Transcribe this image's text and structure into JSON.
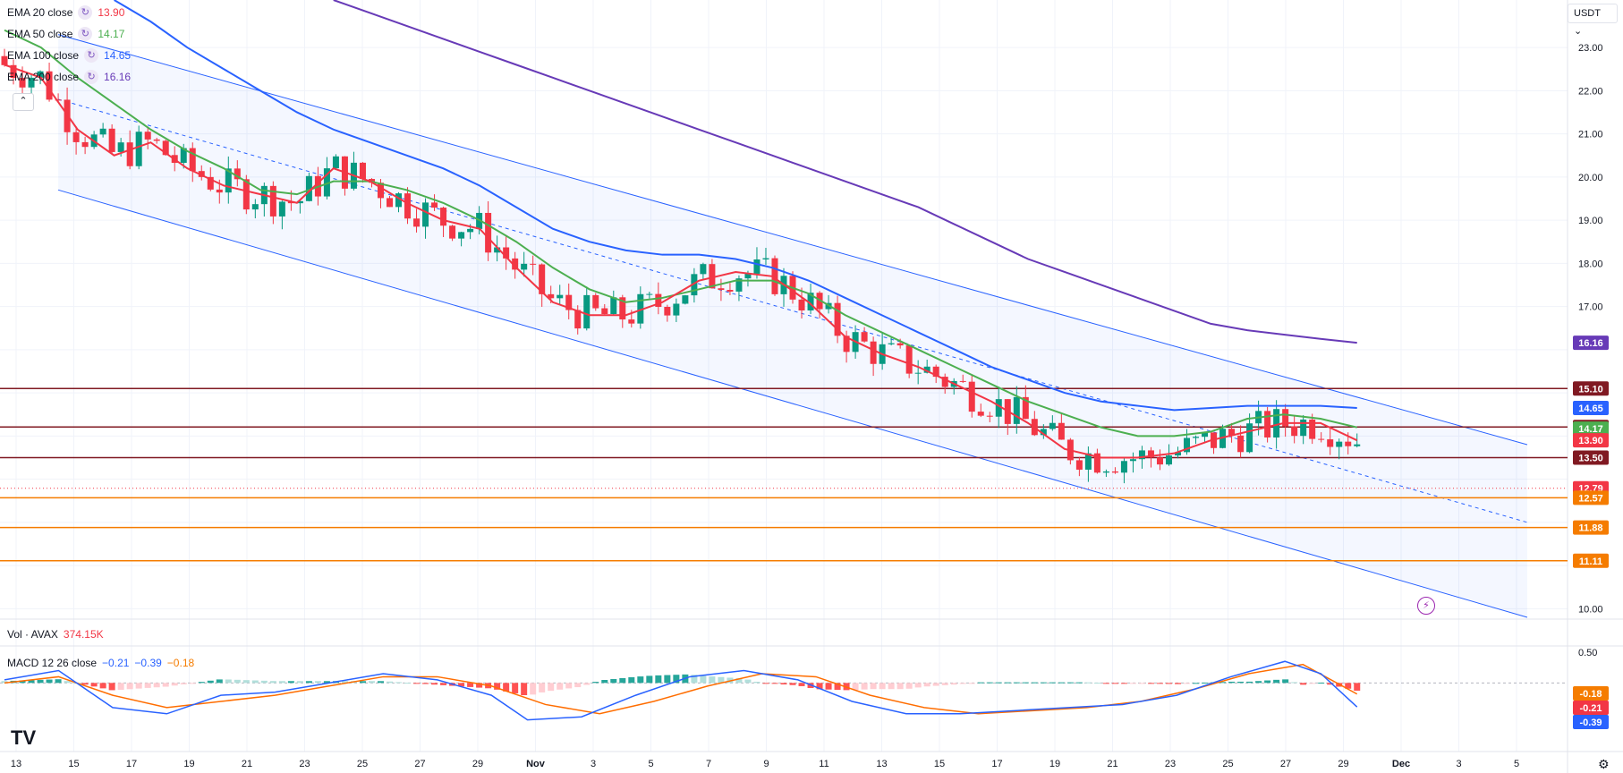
{
  "chart_data": {
    "type": "candlestick",
    "symbol": "AVAX",
    "quote_currency": "USDT",
    "y_range": [
      9.8,
      24.1
    ],
    "y_ticks": [
      "23.00",
      "22.00",
      "21.00",
      "20.00",
      "19.00",
      "18.00",
      "17.00",
      "10.00"
    ],
    "x_ticks": [
      "13",
      "15",
      "17",
      "19",
      "21",
      "23",
      "25",
      "27",
      "29",
      "Nov",
      "3",
      "5",
      "7",
      "9",
      "11",
      "13",
      "15",
      "17",
      "19",
      "21",
      "23",
      "25",
      "27",
      "29",
      "Dec",
      "3",
      "5"
    ],
    "indicators": [
      {
        "name": "EMA 20 close",
        "value": "13.90",
        "color": "#f23645"
      },
      {
        "name": "EMA 50 close",
        "value": "14.17",
        "color": "#4caf50"
      },
      {
        "name": "EMA 100 close",
        "value": "14.65",
        "color": "#2962ff"
      },
      {
        "name": "EMA 200 close",
        "value": "16.16",
        "color": "#673ab7"
      }
    ],
    "ema_series": {
      "ema20": [
        [
          0,
          22.6
        ],
        [
          4,
          22.3
        ],
        [
          8,
          21.1
        ],
        [
          12,
          20.5
        ],
        [
          16,
          20.8
        ],
        [
          20,
          20.2
        ],
        [
          24,
          19.8
        ],
        [
          28,
          19.6
        ],
        [
          32,
          19.4
        ],
        [
          36,
          20.2
        ],
        [
          40,
          19.9
        ],
        [
          44,
          19.4
        ],
        [
          48,
          19.0
        ],
        [
          52,
          18.8
        ],
        [
          56,
          17.9
        ],
        [
          60,
          17.1
        ],
        [
          64,
          16.8
        ],
        [
          68,
          16.8
        ],
        [
          72,
          17.1
        ],
        [
          76,
          17.6
        ],
        [
          80,
          17.8
        ],
        [
          84,
          17.7
        ],
        [
          88,
          17.1
        ],
        [
          92,
          16.3
        ],
        [
          96,
          15.9
        ],
        [
          100,
          15.6
        ],
        [
          104,
          15.2
        ],
        [
          108,
          14.8
        ],
        [
          112,
          14.3
        ],
        [
          116,
          13.7
        ],
        [
          120,
          13.5
        ],
        [
          124,
          13.5
        ],
        [
          128,
          13.6
        ],
        [
          132,
          13.9
        ],
        [
          136,
          14.1
        ],
        [
          140,
          14.3
        ],
        [
          144,
          14.3
        ],
        [
          148,
          13.9
        ]
      ],
      "ema50": [
        [
          0,
          23.4
        ],
        [
          4,
          23.0
        ],
        [
          8,
          22.3
        ],
        [
          12,
          21.7
        ],
        [
          16,
          21.1
        ],
        [
          20,
          20.6
        ],
        [
          24,
          20.2
        ],
        [
          28,
          19.7
        ],
        [
          32,
          19.6
        ],
        [
          36,
          19.9
        ],
        [
          40,
          19.9
        ],
        [
          44,
          19.7
        ],
        [
          48,
          19.4
        ],
        [
          52,
          19.0
        ],
        [
          56,
          18.5
        ],
        [
          60,
          17.9
        ],
        [
          64,
          17.4
        ],
        [
          68,
          17.1
        ],
        [
          72,
          17.2
        ],
        [
          76,
          17.4
        ],
        [
          80,
          17.6
        ],
        [
          84,
          17.6
        ],
        [
          88,
          17.3
        ],
        [
          92,
          16.8
        ],
        [
          96,
          16.4
        ],
        [
          100,
          16.0
        ],
        [
          104,
          15.6
        ],
        [
          108,
          15.2
        ],
        [
          112,
          14.8
        ],
        [
          116,
          14.5
        ],
        [
          120,
          14.2
        ],
        [
          124,
          14.0
        ],
        [
          128,
          14.0
        ],
        [
          132,
          14.1
        ],
        [
          136,
          14.4
        ],
        [
          140,
          14.5
        ],
        [
          144,
          14.4
        ],
        [
          148,
          14.2
        ]
      ],
      "ema100": [
        [
          12,
          24.1
        ],
        [
          16,
          23.6
        ],
        [
          20,
          23.0
        ],
        [
          24,
          22.5
        ],
        [
          28,
          22.0
        ],
        [
          32,
          21.5
        ],
        [
          36,
          21.1
        ],
        [
          40,
          20.8
        ],
        [
          44,
          20.5
        ],
        [
          48,
          20.2
        ],
        [
          52,
          19.8
        ],
        [
          56,
          19.3
        ],
        [
          60,
          18.8
        ],
        [
          64,
          18.5
        ],
        [
          68,
          18.3
        ],
        [
          72,
          18.2
        ],
        [
          76,
          18.2
        ],
        [
          80,
          18.1
        ],
        [
          84,
          17.9
        ],
        [
          88,
          17.6
        ],
        [
          92,
          17.2
        ],
        [
          96,
          16.8
        ],
        [
          100,
          16.4
        ],
        [
          104,
          16.0
        ],
        [
          108,
          15.6
        ],
        [
          112,
          15.3
        ],
        [
          116,
          15.0
        ],
        [
          120,
          14.8
        ],
        [
          124,
          14.7
        ],
        [
          128,
          14.6
        ],
        [
          132,
          14.65
        ],
        [
          136,
          14.7
        ],
        [
          140,
          14.7
        ],
        [
          144,
          14.7
        ],
        [
          148,
          14.65
        ]
      ],
      "ema200": [
        [
          36,
          24.1
        ],
        [
          40,
          23.8
        ],
        [
          44,
          23.5
        ],
        [
          48,
          23.2
        ],
        [
          52,
          22.9
        ],
        [
          56,
          22.6
        ],
        [
          60,
          22.3
        ],
        [
          64,
          22.0
        ],
        [
          68,
          21.7
        ],
        [
          72,
          21.4
        ],
        [
          76,
          21.1
        ],
        [
          80,
          20.8
        ],
        [
          84,
          20.5
        ],
        [
          88,
          20.2
        ],
        [
          92,
          19.9
        ],
        [
          96,
          19.6
        ],
        [
          100,
          19.3
        ],
        [
          104,
          18.9
        ],
        [
          108,
          18.5
        ],
        [
          112,
          18.1
        ],
        [
          116,
          17.8
        ],
        [
          120,
          17.5
        ],
        [
          124,
          17.2
        ],
        [
          128,
          16.9
        ],
        [
          132,
          16.6
        ],
        [
          136,
          16.45
        ],
        [
          140,
          16.35
        ],
        [
          144,
          16.25
        ],
        [
          148,
          16.16
        ]
      ]
    },
    "price_labels": [
      {
        "value": "16.16",
        "price": 16.16,
        "color": "#673ab7"
      },
      {
        "value": "15.10",
        "price": 15.1,
        "color": "#801922"
      },
      {
        "value": "14.65",
        "price": 14.65,
        "color": "#2962ff"
      },
      {
        "value": "14.21",
        "price": 14.21,
        "color": "#801922"
      },
      {
        "value": "14.17",
        "price": 14.17,
        "color": "#4caf50"
      },
      {
        "value": "13.90",
        "price": 13.9,
        "color": "#f23645"
      },
      {
        "value": "13.50",
        "price": 13.5,
        "color": "#801922"
      },
      {
        "value": "12.79",
        "price": 12.79,
        "color": "#f23645"
      },
      {
        "value": "12.57",
        "price": 12.57,
        "color": "#f57c00"
      },
      {
        "value": "11.88",
        "price": 11.88,
        "color": "#f57c00"
      },
      {
        "value": "11.11",
        "price": 11.11,
        "color": "#f57c00"
      }
    ],
    "horizontal_levels": [
      {
        "price": 15.1,
        "color": "#801922"
      },
      {
        "price": 14.21,
        "color": "#801922"
      },
      {
        "price": 13.5,
        "color": "#801922"
      },
      {
        "price": 12.57,
        "color": "#f57c00"
      },
      {
        "price": 11.88,
        "color": "#f57c00"
      },
      {
        "price": 11.11,
        "color": "#f57c00"
      }
    ],
    "channel": {
      "upper": [
        [
          6,
          23.3
        ],
        [
          170,
          13.8
        ]
      ],
      "middle": [
        [
          6,
          21.8
        ],
        [
          170,
          12.0
        ]
      ],
      "lower": [
        [
          6,
          19.7
        ],
        [
          170,
          9.8
        ]
      ]
    },
    "volume": {
      "label": "Vol · AVAX",
      "value": "374.15K"
    },
    "macd": {
      "label": "MACD 12 26 close",
      "values": [
        "−0.21",
        "−0.39",
        "−0.18"
      ],
      "value_colors": [
        "#2962ff",
        "#2962ff",
        "#f57c00"
      ],
      "y_range": [
        -0.75,
        0.6
      ],
      "y_ticks": [
        "0.50"
      ],
      "axis_labels": [
        {
          "value": "-0.18",
          "num": -0.18,
          "color": "#f57c00"
        },
        {
          "value": "-0.21",
          "num": -0.21,
          "color": "#f23645"
        },
        {
          "value": "-0.39",
          "num": -0.39,
          "color": "#2962ff"
        }
      ],
      "macd_line": [
        [
          0,
          0.05
        ],
        [
          6,
          0.2
        ],
        [
          12,
          -0.4
        ],
        [
          18,
          -0.5
        ],
        [
          24,
          -0.2
        ],
        [
          30,
          -0.15
        ],
        [
          36,
          0.0
        ],
        [
          42,
          0.15
        ],
        [
          48,
          0.05
        ],
        [
          54,
          -0.2
        ],
        [
          58,
          -0.6
        ],
        [
          64,
          -0.55
        ],
        [
          70,
          -0.2
        ],
        [
          76,
          0.1
        ],
        [
          82,
          0.2
        ],
        [
          88,
          0.05
        ],
        [
          94,
          -0.3
        ],
        [
          100,
          -0.5
        ],
        [
          106,
          -0.5
        ],
        [
          112,
          -0.45
        ],
        [
          118,
          -0.4
        ],
        [
          124,
          -0.35
        ],
        [
          130,
          -0.2
        ],
        [
          136,
          0.1
        ],
        [
          142,
          0.35
        ],
        [
          146,
          0.15
        ],
        [
          150,
          -0.39
        ]
      ],
      "signal_line": [
        [
          0,
          0.0
        ],
        [
          6,
          0.1
        ],
        [
          12,
          -0.2
        ],
        [
          18,
          -0.4
        ],
        [
          24,
          -0.3
        ],
        [
          30,
          -0.2
        ],
        [
          36,
          -0.05
        ],
        [
          42,
          0.1
        ],
        [
          48,
          0.1
        ],
        [
          54,
          -0.05
        ],
        [
          60,
          -0.35
        ],
        [
          66,
          -0.5
        ],
        [
          72,
          -0.3
        ],
        [
          78,
          -0.05
        ],
        [
          84,
          0.15
        ],
        [
          90,
          0.1
        ],
        [
          96,
          -0.2
        ],
        [
          102,
          -0.4
        ],
        [
          108,
          -0.5
        ],
        [
          114,
          -0.45
        ],
        [
          120,
          -0.4
        ],
        [
          126,
          -0.3
        ],
        [
          132,
          -0.1
        ],
        [
          138,
          0.15
        ],
        [
          144,
          0.3
        ],
        [
          150,
          -0.18
        ]
      ]
    }
  },
  "ui": {
    "currency": "USDT",
    "currency_icon": "chevron-down-icon",
    "collapse_icon": "chevron-up-icon",
    "logo": "TV",
    "lightning_icon": "lightning-icon",
    "settings_icon": "gear-icon"
  }
}
